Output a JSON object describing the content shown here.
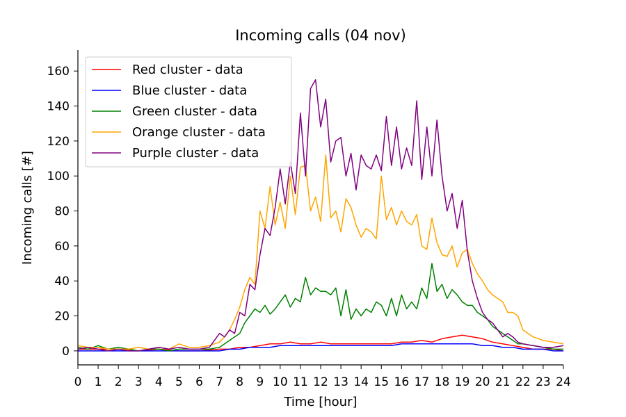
{
  "chart_data": {
    "type": "line",
    "title": "Incoming calls (04 nov)",
    "xlabel": "Time [hour]",
    "ylabel": "Incoming calls [#]",
    "xlim": [
      0,
      24
    ],
    "ylim": [
      -8,
      172
    ],
    "xticks": [
      "0",
      "1",
      "2",
      "3",
      "4",
      "5",
      "6",
      "7",
      "8",
      "9",
      "10",
      "11",
      "12",
      "13",
      "14",
      "15",
      "16",
      "17",
      "18",
      "19",
      "20",
      "21",
      "22",
      "23",
      "24"
    ],
    "yticks": [
      "0",
      "20",
      "40",
      "60",
      "80",
      "100",
      "120",
      "140",
      "160"
    ],
    "grid": false,
    "legend_position": "top-left",
    "series": [
      {
        "name": "Red cluster - data",
        "color": "#ff0000",
        "x": [
          0,
          1,
          2,
          3,
          4,
          5,
          6,
          7,
          7.5,
          8,
          8.5,
          9,
          9.5,
          10,
          10.5,
          11,
          11.5,
          12,
          12.5,
          13,
          13.5,
          14,
          14.5,
          15,
          15.5,
          16,
          16.5,
          17,
          17.5,
          18,
          18.5,
          19,
          19.5,
          20,
          20.5,
          21,
          21.5,
          22,
          22.5,
          23,
          23.5,
          24
        ],
        "y": [
          1,
          1,
          1,
          0,
          1,
          0,
          0,
          1,
          1,
          2,
          2,
          3,
          4,
          4,
          5,
          4,
          4,
          5,
          4,
          4,
          4,
          4,
          4,
          4,
          4,
          5,
          5,
          6,
          5,
          7,
          8,
          9,
          8,
          7,
          5,
          4,
          3,
          2,
          1,
          1,
          1,
          0
        ]
      },
      {
        "name": "Blue cluster - data",
        "color": "#0000ff",
        "x": [
          0,
          1,
          2,
          3,
          4,
          5,
          6,
          7,
          7.5,
          8,
          8.5,
          9,
          9.5,
          10,
          10.5,
          11,
          11.5,
          12,
          12.5,
          13,
          13.5,
          14,
          14.5,
          15,
          15.5,
          16,
          16.5,
          17,
          17.5,
          18,
          18.5,
          19,
          19.5,
          20,
          20.5,
          21,
          21.5,
          22,
          22.5,
          23,
          23.5,
          24
        ],
        "y": [
          0,
          0,
          0,
          0,
          0,
          0,
          0,
          0,
          1,
          1,
          2,
          2,
          2,
          3,
          3,
          3,
          3,
          3,
          3,
          3,
          3,
          3,
          3,
          3,
          3,
          4,
          4,
          4,
          4,
          4,
          4,
          4,
          4,
          3,
          3,
          2,
          2,
          1,
          1,
          1,
          0,
          0
        ]
      },
      {
        "name": "Green cluster - data",
        "color": "#008000",
        "x": [
          0,
          0.5,
          1,
          1.5,
          2,
          2.5,
          3,
          3.5,
          4,
          4.5,
          5,
          5.5,
          6,
          6.5,
          7,
          7.25,
          7.5,
          7.75,
          8,
          8.25,
          8.5,
          8.75,
          9,
          9.25,
          9.5,
          9.75,
          10,
          10.25,
          10.5,
          10.75,
          11,
          11.25,
          11.5,
          11.75,
          12,
          12.25,
          12.5,
          12.75,
          13,
          13.25,
          13.5,
          13.75,
          14,
          14.25,
          14.5,
          14.75,
          15,
          15.25,
          15.5,
          15.75,
          16,
          16.25,
          16.5,
          16.75,
          17,
          17.25,
          17.5,
          17.75,
          18,
          18.25,
          18.5,
          18.75,
          19,
          19.25,
          19.5,
          19.75,
          20,
          20.25,
          20.5,
          20.75,
          21,
          21.25,
          21.5,
          21.75,
          22,
          22.5,
          23,
          23.5,
          24
        ],
        "y": [
          2,
          1,
          3,
          1,
          2,
          1,
          0,
          1,
          1,
          0,
          1,
          1,
          1,
          1,
          2,
          4,
          6,
          8,
          10,
          16,
          20,
          24,
          22,
          26,
          21,
          24,
          28,
          32,
          25,
          30,
          28,
          42,
          32,
          36,
          34,
          34,
          32,
          36,
          20,
          35,
          18,
          24,
          20,
          24,
          22,
          28,
          26,
          20,
          30,
          20,
          32,
          24,
          28,
          24,
          36,
          30,
          50,
          34,
          38,
          30,
          35,
          32,
          28,
          26,
          26,
          22,
          20,
          18,
          14,
          12,
          10,
          8,
          6,
          4,
          4,
          3,
          2,
          1,
          1
        ]
      },
      {
        "name": "Orange cluster - data",
        "color": "#ffa500",
        "x": [
          0,
          0.5,
          1,
          1.5,
          2,
          2.5,
          3,
          3.5,
          4,
          4.5,
          5,
          5.5,
          6,
          6.5,
          7,
          7.25,
          7.5,
          7.75,
          8,
          8.25,
          8.5,
          8.75,
          9,
          9.25,
          9.5,
          9.75,
          10,
          10.25,
          10.5,
          10.75,
          11,
          11.25,
          11.5,
          11.75,
          12,
          12.25,
          12.5,
          12.75,
          13,
          13.25,
          13.5,
          13.75,
          14,
          14.25,
          14.5,
          14.75,
          15,
          15.25,
          15.5,
          15.75,
          16,
          16.25,
          16.5,
          16.75,
          17,
          17.25,
          17.5,
          17.75,
          18,
          18.25,
          18.5,
          18.75,
          19,
          19.25,
          19.5,
          19.75,
          20,
          20.25,
          20.5,
          20.75,
          21,
          21.25,
          21.5,
          21.75,
          22,
          22.5,
          23,
          23.5,
          24
        ],
        "y": [
          3,
          2,
          2,
          1,
          1,
          1,
          2,
          1,
          2,
          1,
          4,
          2,
          2,
          3,
          5,
          8,
          12,
          18,
          25,
          35,
          42,
          38,
          80,
          70,
          94,
          72,
          85,
          70,
          100,
          78,
          105,
          106,
          80,
          88,
          74,
          112,
          76,
          80,
          68,
          87,
          82,
          72,
          65,
          70,
          68,
          64,
          100,
          75,
          82,
          72,
          80,
          74,
          72,
          78,
          60,
          58,
          76,
          62,
          55,
          54,
          60,
          48,
          56,
          58,
          50,
          44,
          40,
          35,
          32,
          30,
          28,
          22,
          22,
          20,
          12,
          8,
          6,
          5,
          4
        ]
      },
      {
        "name": "Purple cluster - data",
        "color": "#800080",
        "x": [
          0,
          0.5,
          1,
          1.5,
          2,
          2.5,
          3,
          3.5,
          4,
          4.5,
          5,
          5.5,
          6,
          6.5,
          7,
          7.25,
          7.5,
          7.75,
          8,
          8.25,
          8.5,
          8.75,
          9,
          9.25,
          9.5,
          9.75,
          10,
          10.25,
          10.5,
          10.75,
          11,
          11.25,
          11.5,
          11.75,
          12,
          12.25,
          12.5,
          12.75,
          13,
          13.25,
          13.5,
          13.75,
          14,
          14.25,
          14.5,
          14.75,
          15,
          15.25,
          15.5,
          15.75,
          16,
          16.25,
          16.5,
          16.75,
          17,
          17.25,
          17.5,
          17.75,
          18,
          18.25,
          18.5,
          18.75,
          19,
          19.25,
          19.5,
          19.75,
          20,
          20.25,
          20.5,
          20.75,
          21,
          21.25,
          21.5,
          21.75,
          22,
          22.5,
          23,
          23.5,
          24
        ],
        "y": [
          1,
          2,
          1,
          0,
          1,
          0,
          0,
          1,
          2,
          1,
          2,
          1,
          1,
          2,
          10,
          8,
          12,
          10,
          22,
          20,
          38,
          35,
          55,
          70,
          66,
          82,
          104,
          84,
          108,
          90,
          136,
          100,
          150,
          155,
          128,
          144,
          108,
          120,
          122,
          100,
          113,
          92,
          112,
          106,
          104,
          112,
          103,
          134,
          106,
          128,
          104,
          116,
          106,
          143,
          98,
          128,
          100,
          132,
          100,
          80,
          90,
          70,
          86,
          57,
          40,
          30,
          22,
          18,
          16,
          12,
          8,
          10,
          8,
          5,
          4,
          3,
          2,
          2,
          3
        ]
      }
    ]
  }
}
